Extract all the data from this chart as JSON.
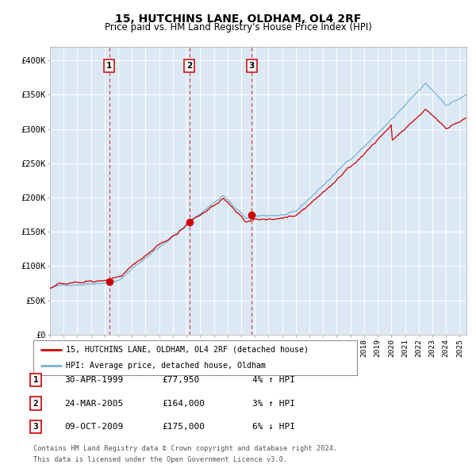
{
  "title": "15, HUTCHINS LANE, OLDHAM, OL4 2RF",
  "subtitle": "Price paid vs. HM Land Registry's House Price Index (HPI)",
  "title_fontsize": 10,
  "subtitle_fontsize": 8.5,
  "bg_color": "#dce9f5",
  "hpi_color": "#7ab0d4",
  "price_color": "#cc0000",
  "marker_color": "#cc0000",
  "vline_color": "#cc0000",
  "ylim": [
    0,
    420000
  ],
  "yticks": [
    0,
    50000,
    100000,
    150000,
    200000,
    250000,
    300000,
    350000,
    400000
  ],
  "ytick_labels": [
    "£0",
    "£50K",
    "£100K",
    "£150K",
    "£200K",
    "£250K",
    "£300K",
    "£350K",
    "£400K"
  ],
  "legend_label_price": "15, HUTCHINS LANE, OLDHAM, OL4 2RF (detached house)",
  "legend_label_hpi": "HPI: Average price, detached house, Oldham",
  "purchases": [
    {
      "label": "1",
      "date_str": "30-APR-1999",
      "price": 77950,
      "pct": "4%",
      "dir": "↑",
      "x": 1999.33
    },
    {
      "label": "2",
      "date_str": "24-MAR-2005",
      "price": 164000,
      "pct": "3%",
      "dir": "↑",
      "x": 2005.22
    },
    {
      "label": "3",
      "date_str": "09-OCT-2009",
      "price": 175000,
      "pct": "6%",
      "dir": "↓",
      "x": 2009.78
    }
  ],
  "footer1": "Contains HM Land Registry data © Crown copyright and database right 2024.",
  "footer2": "This data is licensed under the Open Government Licence v3.0.",
  "xmin": 1995,
  "xmax": 2025.5
}
